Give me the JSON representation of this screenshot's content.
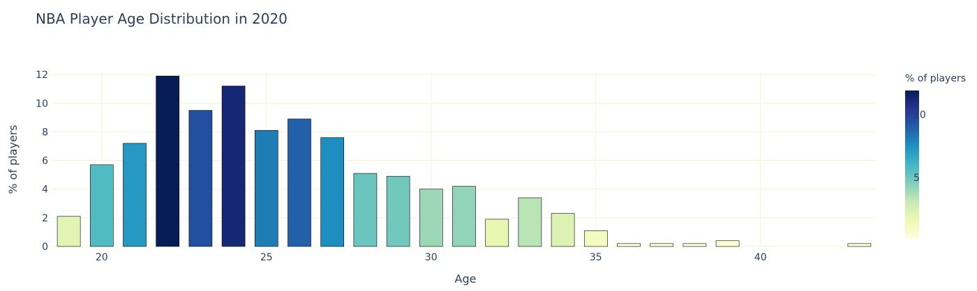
{
  "chart_data": {
    "type": "bar",
    "title": "NBA Player Age Distribution in 2020",
    "xlabel": "Age",
    "ylabel": "% of players",
    "x": [
      19,
      20,
      21,
      22,
      23,
      24,
      25,
      26,
      27,
      28,
      29,
      30,
      31,
      32,
      33,
      34,
      35,
      36,
      37,
      38,
      39,
      40,
      41,
      42,
      43
    ],
    "values": [
      2.1,
      5.7,
      7.2,
      11.9,
      9.5,
      11.2,
      8.1,
      8.9,
      7.6,
      5.1,
      4.9,
      4.0,
      4.2,
      1.9,
      3.4,
      2.3,
      1.1,
      0.2,
      0.2,
      0.2,
      0.4,
      0,
      0,
      0,
      0.2
    ],
    "xlim": [
      18.5,
      43.5
    ],
    "ylim": [
      0,
      12.2
    ],
    "xticks": [
      20,
      25,
      30,
      35,
      40
    ],
    "yticks": [
      0,
      2,
      4,
      6,
      8,
      10,
      12
    ],
    "grid": true,
    "colorbar": {
      "title": "% of players",
      "ticks": [
        5,
        10
      ],
      "range": [
        0.2,
        11.9
      ],
      "colorscale": [
        "#ffffd9",
        "#edf8b1",
        "#c7e9b4",
        "#7fcdbb",
        "#41b6c4",
        "#1d91c0",
        "#225ea8",
        "#253494",
        "#081d58"
      ]
    }
  }
}
